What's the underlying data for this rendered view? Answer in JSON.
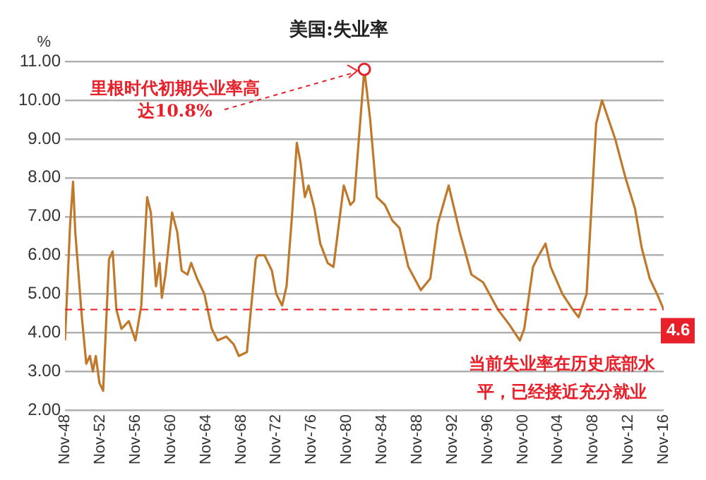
{
  "chart_data": {
    "type": "line",
    "title": "美国:失业率",
    "ylabel": "%",
    "x": [
      "1948-11",
      "1949-06",
      "1949-10",
      "1950-01",
      "1950-10",
      "1951-04",
      "1951-09",
      "1952-01",
      "1952-05",
      "1952-10",
      "1953-03",
      "1953-11",
      "1954-04",
      "1954-09",
      "1955-04",
      "1956-02",
      "1956-11",
      "1957-07",
      "1958-03",
      "1958-08",
      "1959-03",
      "1959-08",
      "1959-11",
      "1960-04",
      "1961-01",
      "1961-08",
      "1962-02",
      "1962-10",
      "1963-03",
      "1963-11",
      "1964-09",
      "1965-07",
      "1966-03",
      "1967-03",
      "1968-01",
      "1968-08",
      "1969-07",
      "1970-07",
      "1970-10",
      "1971-07",
      "1972-05",
      "1972-11",
      "1973-07",
      "1974-01",
      "1974-08",
      "1975-03",
      "1975-08",
      "1976-02",
      "1976-07",
      "1977-03",
      "1977-11",
      "1978-09",
      "1979-05",
      "1980-07",
      "1981-04",
      "1981-09",
      "1982-11",
      "1983-07",
      "1984-04",
      "1985-03",
      "1986-01",
      "1986-11",
      "1987-11",
      "1989-04",
      "1990-05",
      "1991-03",
      "1992-06",
      "1993-09",
      "1995-01",
      "1996-05",
      "1998-01",
      "1999-05",
      "2000-07",
      "2001-01",
      "2002-01",
      "2002-09",
      "2003-06",
      "2004-01",
      "2005-05",
      "2006-07",
      "2007-03",
      "2008-02",
      "2009-03",
      "2009-11",
      "2010-08",
      "2011-05",
      "2012-07",
      "2013-08",
      "2014-05",
      "2015-04",
      "2016-02",
      "2016-11"
    ],
    "series": [
      {
        "color": "#c0782a",
        "values": [
          3.8,
          6.8,
          7.9,
          6.6,
          4.4,
          3.2,
          3.4,
          3.0,
          3.4,
          2.7,
          2.5,
          5.9,
          6.1,
          4.6,
          4.1,
          4.3,
          3.8,
          4.7,
          7.5,
          7.1,
          5.2,
          5.8,
          4.9,
          5.5,
          7.1,
          6.6,
          5.6,
          5.5,
          5.8,
          5.4,
          5.0,
          4.1,
          3.8,
          3.9,
          3.7,
          3.4,
          3.5,
          5.9,
          6.0,
          6.0,
          5.6,
          5.0,
          4.7,
          5.2,
          6.9,
          8.9,
          8.4,
          7.5,
          7.8,
          7.2,
          6.3,
          5.8,
          5.7,
          7.8,
          7.3,
          7.4,
          10.8,
          9.5,
          7.5,
          7.3,
          6.9,
          6.7,
          5.7,
          5.1,
          5.4,
          6.8,
          7.8,
          6.6,
          5.5,
          5.3,
          4.6,
          4.2,
          3.8,
          4.1,
          5.7,
          6.0,
          6.3,
          5.7,
          5.0,
          4.6,
          4.4,
          5.0,
          9.4,
          10.0,
          9.5,
          9.0,
          8.0,
          7.2,
          6.2,
          5.4,
          5.0,
          4.6
        ]
      }
    ],
    "xlim": [
      "1948-11",
      "2016-11"
    ],
    "xticks": [
      {
        "value": "1948-11",
        "label": "Nov-48"
      },
      {
        "value": "1952-11",
        "label": "Nov-52"
      },
      {
        "value": "1956-11",
        "label": "Nov-56"
      },
      {
        "value": "1960-11",
        "label": "Nov-60"
      },
      {
        "value": "1964-11",
        "label": "Nov-64"
      },
      {
        "value": "1968-11",
        "label": "Nov-68"
      },
      {
        "value": "1972-11",
        "label": "Nov-72"
      },
      {
        "value": "1976-11",
        "label": "Nov-76"
      },
      {
        "value": "1980-11",
        "label": "Nov-80"
      },
      {
        "value": "1984-11",
        "label": "Nov-84"
      },
      {
        "value": "1988-11",
        "label": "Nov-88"
      },
      {
        "value": "1992-11",
        "label": "Nov-92"
      },
      {
        "value": "1996-11",
        "label": "Nov-96"
      },
      {
        "value": "2000-11",
        "label": "Nov-00"
      },
      {
        "value": "2004-11",
        "label": "Nov-04"
      },
      {
        "value": "2008-11",
        "label": "Nov-08"
      },
      {
        "value": "2012-11",
        "label": "Nov-12"
      },
      {
        "value": "2016-11",
        "label": "Nov-16"
      }
    ],
    "ylim": [
      2,
      11
    ],
    "yticks": [
      {
        "value": 2,
        "label": "2.00"
      },
      {
        "value": 3,
        "label": "3.00"
      },
      {
        "value": 4,
        "label": "4.00"
      },
      {
        "value": 5,
        "label": "5.00"
      },
      {
        "value": 6,
        "label": "6.00"
      },
      {
        "value": 7,
        "label": "7.00"
      },
      {
        "value": 8,
        "label": "8.00"
      },
      {
        "value": 9,
        "label": "9.00"
      },
      {
        "value": 10,
        "label": "10.00"
      },
      {
        "value": 11,
        "label": "11.00"
      }
    ],
    "grid": "y",
    "marker": "none",
    "line_style": "solid",
    "legend": false,
    "ref_lines": [
      {
        "axis": "y",
        "value": 4.6,
        "label": "4.6",
        "color": "#e8202a",
        "line_style": "dashed"
      }
    ],
    "annotations": [
      {
        "text": "里根时代初期失业率高达10.8%",
        "x": "1982-11",
        "y": 10.8
      },
      "当前失业率在历史底部水平，已经接近充分就业"
    ]
  }
}
